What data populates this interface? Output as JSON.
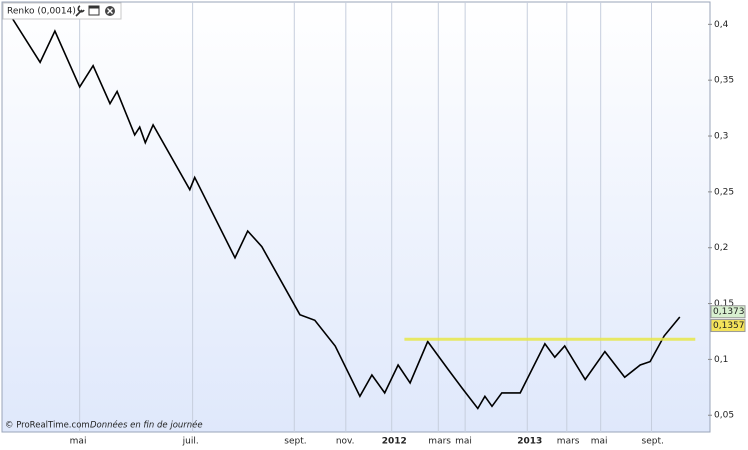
{
  "chart_data": {
    "type": "line",
    "title": "Renko (0,0014)",
    "source": "© ProRealTime.com",
    "note": "Données en fin de journée",
    "color": "#000000",
    "x": [
      0.4,
      5.4,
      7.5,
      11,
      12.9,
      15.3,
      16.3,
      18.8,
      19.5,
      20.3,
      21.4,
      26.6,
      27.3,
      33,
      34.8,
      36.8,
      42.2,
      44.3,
      47.2,
      50.7,
      52.4,
      54.2,
      56.1,
      57.8,
      60.3,
      63.2,
      65.2,
      67.4,
      68.4,
      69.4,
      70.8,
      73.4,
      76.9,
      78.3,
      79.7,
      82.6,
      85.4,
      88.2,
      90.4,
      91.8,
      93.8,
      96
    ],
    "values": [
      0.416,
      0.366,
      0.394,
      0.344,
      0.363,
      0.329,
      0.34,
      0.301,
      0.308,
      0.294,
      0.31,
      0.252,
      0.263,
      0.191,
      0.215,
      0.201,
      0.14,
      0.135,
      0.112,
      0.067,
      0.086,
      0.07,
      0.095,
      0.079,
      0.116,
      0.091,
      0.074,
      0.056,
      0.067,
      0.058,
      0.07,
      0.07,
      0.114,
      0.102,
      0.112,
      0.082,
      0.107,
      0.084,
      0.095,
      0.098,
      0.121,
      0.138
    ],
    "xlim": [
      0,
      100
    ],
    "ylim": [
      0.035,
      0.42
    ],
    "xticks": [
      {
        "value": 11,
        "label": "mai"
      },
      {
        "value": 27,
        "label": "juil."
      },
      {
        "value": 41.4,
        "label": "sept."
      },
      {
        "value": 48.7,
        "label": "nov."
      },
      {
        "value": 55.2,
        "label": "2012"
      },
      {
        "value": 61.8,
        "label": "mars"
      },
      {
        "value": 65.6,
        "label": "mai"
      },
      {
        "value": 74.4,
        "label": "2013"
      },
      {
        "value": 80,
        "label": "mars"
      },
      {
        "value": 84.8,
        "label": "mai"
      },
      {
        "value": 92,
        "label": "sept."
      }
    ],
    "yticks": [
      {
        "value": 0.05,
        "label": "0,05"
      },
      {
        "value": 0.1,
        "label": "0,1"
      },
      {
        "value": 0.15,
        "label": "0,15"
      },
      {
        "value": 0.2,
        "label": "0,2"
      },
      {
        "value": 0.25,
        "label": "0,25"
      },
      {
        "value": 0.3,
        "label": "0,3"
      },
      {
        "value": 0.35,
        "label": "0,35"
      },
      {
        "value": 0.4,
        "label": "0,4"
      }
    ],
    "grid": "x",
    "hline": {
      "value": 0.118,
      "x": [
        57,
        98.2
      ],
      "color": "#e8e84a"
    },
    "price_tags": [
      {
        "value": 0.1373,
        "label": "0,1373",
        "color": "#d8f0d0"
      },
      {
        "value": 0.1357,
        "label": "0,1357",
        "color": "#f3e25a"
      }
    ]
  }
}
